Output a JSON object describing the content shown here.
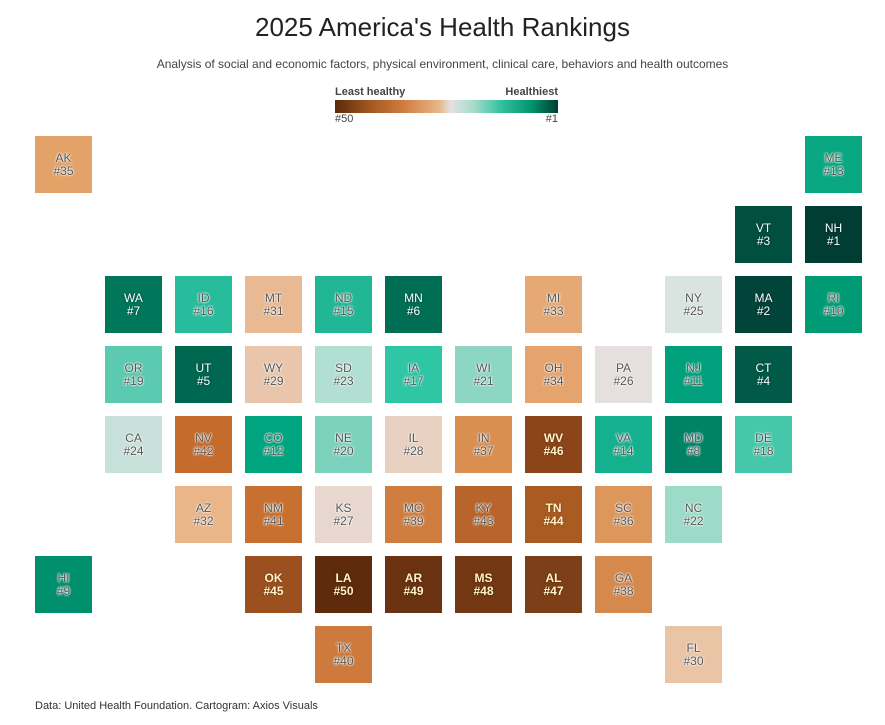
{
  "title": "2025 America's Health Rankings",
  "subtitle": "Analysis of social and economic factors, physical environment, clinical care, behaviors and health outcomes",
  "legend": {
    "left_label": "Least healthy",
    "right_label": "Healthiest",
    "left_tick": "#50",
    "right_tick": "#1"
  },
  "source": "Data: United Health Foundation. Cartogram: Axios Visuals",
  "chart_data": {
    "type": "heatmap",
    "title": "2025 America's Health Rankings",
    "subtitle": "Analysis of social and economic factors, physical environment, clinical care, behaviors and health outcomes",
    "color_scale": {
      "low_label": "Least healthy",
      "high_label": "Healthiest",
      "range": [
        50,
        1
      ],
      "colors": [
        "#5a2a0a",
        "#cf7a3c",
        "#e8b78d",
        "#e2e2e2",
        "#2fbf9c",
        "#003d30"
      ]
    },
    "cells": [
      {
        "state": "AK",
        "rank": 35,
        "col": 0,
        "row": 0,
        "color": "#e3a268"
      },
      {
        "state": "ME",
        "rank": 13,
        "col": 11,
        "row": 0,
        "color": "#0aa882"
      },
      {
        "state": "VT",
        "rank": 3,
        "col": 10,
        "row": 1,
        "color": "#004f3f"
      },
      {
        "state": "NH",
        "rank": 1,
        "col": 11,
        "row": 1,
        "color": "#003d33"
      },
      {
        "state": "WA",
        "rank": 7,
        "col": 1,
        "row": 2,
        "color": "#00765a"
      },
      {
        "state": "ID",
        "rank": 16,
        "col": 2,
        "row": 2,
        "color": "#26bc9c"
      },
      {
        "state": "MT",
        "rank": 31,
        "col": 3,
        "row": 2,
        "color": "#e8b993"
      },
      {
        "state": "ND",
        "rank": 15,
        "col": 4,
        "row": 2,
        "color": "#21b796"
      },
      {
        "state": "MN",
        "rank": 6,
        "col": 5,
        "row": 2,
        "color": "#006e55"
      },
      {
        "state": "MI",
        "rank": 33,
        "col": 7,
        "row": 2,
        "color": "#e6a976"
      },
      {
        "state": "NY",
        "rank": 25,
        "col": 9,
        "row": 2,
        "color": "#d9e3e0"
      },
      {
        "state": "MA",
        "rank": 2,
        "col": 10,
        "row": 2,
        "color": "#00443a"
      },
      {
        "state": "RI",
        "rank": 10,
        "col": 11,
        "row": 2,
        "color": "#009b75"
      },
      {
        "state": "OR",
        "rank": 19,
        "col": 1,
        "row": 3,
        "color": "#5bcab0"
      },
      {
        "state": "UT",
        "rank": 5,
        "col": 2,
        "row": 3,
        "color": "#006750"
      },
      {
        "state": "WY",
        "rank": 29,
        "col": 3,
        "row": 3,
        "color": "#e9c6ab"
      },
      {
        "state": "SD",
        "rank": 23,
        "col": 4,
        "row": 3,
        "color": "#b1dfd2"
      },
      {
        "state": "IA",
        "rank": 17,
        "col": 5,
        "row": 3,
        "color": "#2fc6a6"
      },
      {
        "state": "WI",
        "rank": 21,
        "col": 6,
        "row": 3,
        "color": "#8cd6c3"
      },
      {
        "state": "OH",
        "rank": 34,
        "col": 7,
        "row": 3,
        "color": "#e5a46e"
      },
      {
        "state": "PA",
        "rank": 26,
        "col": 8,
        "row": 3,
        "color": "#e5e0dd"
      },
      {
        "state": "NJ",
        "rank": 11,
        "col": 9,
        "row": 3,
        "color": "#00a07c"
      },
      {
        "state": "CT",
        "rank": 4,
        "col": 10,
        "row": 3,
        "color": "#005a47"
      },
      {
        "state": "CA",
        "rank": 24,
        "col": 1,
        "row": 4,
        "color": "#c8e1da"
      },
      {
        "state": "NV",
        "rank": 42,
        "col": 2,
        "row": 4,
        "color": "#c56b2c"
      },
      {
        "state": "CO",
        "rank": 12,
        "col": 3,
        "row": 4,
        "color": "#00a47f"
      },
      {
        "state": "NE",
        "rank": 20,
        "col": 4,
        "row": 4,
        "color": "#7dd2bd"
      },
      {
        "state": "IL",
        "rank": 28,
        "col": 5,
        "row": 4,
        "color": "#e7d0c0"
      },
      {
        "state": "IN",
        "rank": 37,
        "col": 6,
        "row": 4,
        "color": "#da8f50"
      },
      {
        "state": "WV",
        "rank": 46,
        "col": 7,
        "row": 4,
        "color": "#8c4519"
      },
      {
        "state": "VA",
        "rank": 14,
        "col": 8,
        "row": 4,
        "color": "#15b18f"
      },
      {
        "state": "MD",
        "rank": 8,
        "col": 9,
        "row": 4,
        "color": "#008365"
      },
      {
        "state": "DE",
        "rank": 18,
        "col": 10,
        "row": 4,
        "color": "#45c8aa"
      },
      {
        "state": "AZ",
        "rank": 32,
        "col": 2,
        "row": 5,
        "color": "#e9b589"
      },
      {
        "state": "NM",
        "rank": 41,
        "col": 3,
        "row": 5,
        "color": "#c8702f"
      },
      {
        "state": "KS",
        "rank": 27,
        "col": 4,
        "row": 5,
        "color": "#e7d7ce"
      },
      {
        "state": "MO",
        "rank": 39,
        "col": 5,
        "row": 5,
        "color": "#d07d40"
      },
      {
        "state": "KY",
        "rank": 43,
        "col": 6,
        "row": 5,
        "color": "#b8642a"
      },
      {
        "state": "TN",
        "rank": 44,
        "col": 7,
        "row": 5,
        "color": "#a95b22"
      },
      {
        "state": "SC",
        "rank": 36,
        "col": 8,
        "row": 5,
        "color": "#dd975c"
      },
      {
        "state": "NC",
        "rank": 22,
        "col": 9,
        "row": 5,
        "color": "#9ddbc9"
      },
      {
        "state": "HI",
        "rank": 9,
        "col": 0,
        "row": 6,
        "color": "#008f6d"
      },
      {
        "state": "OK",
        "rank": 45,
        "col": 3,
        "row": 6,
        "color": "#9c5020"
      },
      {
        "state": "LA",
        "rank": 50,
        "col": 4,
        "row": 6,
        "color": "#5e2b0c"
      },
      {
        "state": "AR",
        "rank": 49,
        "col": 5,
        "row": 6,
        "color": "#6a3211"
      },
      {
        "state": "MS",
        "rank": 48,
        "col": 6,
        "row": 6,
        "color": "#733813"
      },
      {
        "state": "AL",
        "rank": 47,
        "col": 7,
        "row": 6,
        "color": "#7d3f17"
      },
      {
        "state": "GA",
        "rank": 38,
        "col": 8,
        "row": 6,
        "color": "#d6894d"
      },
      {
        "state": "TX",
        "rank": 40,
        "col": 4,
        "row": 7,
        "color": "#cd7a3c"
      },
      {
        "state": "FL",
        "rank": 30,
        "col": 9,
        "row": 7,
        "color": "#e9c4a5"
      }
    ]
  }
}
